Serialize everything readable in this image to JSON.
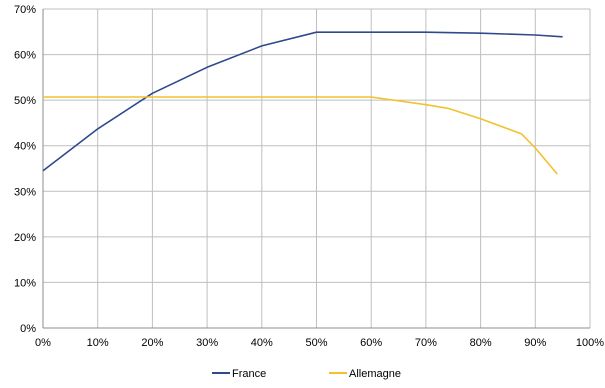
{
  "chart_data": {
    "type": "line",
    "xlim": [
      0,
      100
    ],
    "ylim": [
      0,
      70
    ],
    "x_ticks": [
      0,
      10,
      20,
      30,
      40,
      50,
      60,
      70,
      80,
      90,
      100
    ],
    "x_tick_labels": [
      "0%",
      "10%",
      "20%",
      "30%",
      "40%",
      "50%",
      "60%",
      "70%",
      "80%",
      "90%",
      "100%"
    ],
    "y_ticks": [
      0,
      10,
      20,
      30,
      40,
      50,
      60,
      70
    ],
    "y_tick_labels": [
      "0%",
      "10%",
      "20%",
      "30%",
      "40%",
      "50%",
      "60%",
      "70%"
    ],
    "grid": true,
    "legend_position": "bottom",
    "series": [
      {
        "name": "France",
        "color": "#2E4A8C",
        "points": [
          [
            0,
            34.5
          ],
          [
            10,
            43.7
          ],
          [
            20,
            51.5
          ],
          [
            30,
            57.2
          ],
          [
            40,
            61.9
          ],
          [
            50,
            64.9
          ],
          [
            60,
            64.9
          ],
          [
            70,
            64.9
          ],
          [
            80,
            64.7
          ],
          [
            90,
            64.3
          ],
          [
            95,
            63.9
          ]
        ]
      },
      {
        "name": "Allemagne",
        "color": "#F2C12E",
        "points": [
          [
            0,
            50.7
          ],
          [
            10,
            50.7
          ],
          [
            20,
            50.7
          ],
          [
            30,
            50.7
          ],
          [
            40,
            50.7
          ],
          [
            50,
            50.7
          ],
          [
            60,
            50.7
          ],
          [
            70,
            49.0
          ],
          [
            74,
            48.2
          ],
          [
            80,
            45.9
          ],
          [
            87.5,
            42.6
          ],
          [
            90,
            39.5
          ],
          [
            94,
            33.8
          ]
        ]
      }
    ]
  }
}
